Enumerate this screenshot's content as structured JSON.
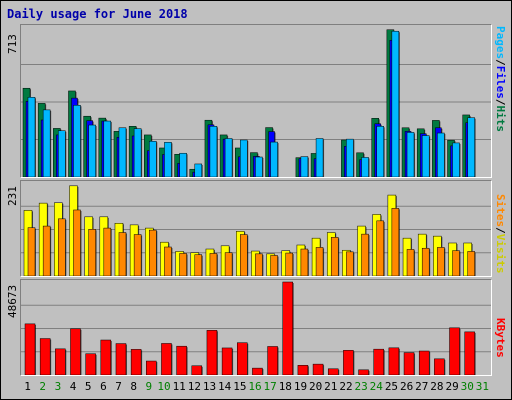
{
  "title": "Daily usage for June 2018",
  "colors": {
    "hits": "#007a40",
    "files": "#0000ff",
    "pages": "#00b8ff",
    "visits": "#ffff00",
    "sites": "#ff8800",
    "kbytes": "#ff0000",
    "weekday": "#000000",
    "weekend": "#007f00",
    "grid": "#808080"
  },
  "panels": {
    "hits": {
      "ymax_label": "713",
      "right_labels": [
        "Pages",
        "/",
        "Files",
        "/",
        "Hits"
      ]
    },
    "visits": {
      "ymax_label": "231",
      "right_labels": [
        "Sites",
        "/",
        "Visits"
      ]
    },
    "kbytes": {
      "ymax_label": "48673",
      "right_labels": [
        "KBytes"
      ]
    }
  },
  "chart_data": {
    "type": "bar",
    "title": "Daily usage for June 2018",
    "categories": [
      "1",
      "2",
      "3",
      "4",
      "5",
      "6",
      "7",
      "8",
      "9",
      "10",
      "11",
      "12",
      "13",
      "14",
      "15",
      "16",
      "17",
      "18",
      "19",
      "20",
      "21",
      "22",
      "23",
      "24",
      "25",
      "26",
      "27",
      "28",
      "29",
      "30",
      "31"
    ],
    "weekend_days": [
      "2",
      "3",
      "9",
      "10",
      "16",
      "17",
      "23",
      "24",
      "30",
      "31"
    ],
    "panels": [
      {
        "name": "hits",
        "ymax": 713,
        "series": [
          {
            "name": "Hits",
            "values": [
              422,
              350,
              231,
              409,
              289,
              280,
              217,
              241,
              200,
              138,
              108,
              37,
              270,
              200,
              138,
              116,
              235,
              0,
              92,
              112,
              0,
              176,
              115,
              279,
              700,
              234,
              229,
              269,
              175,
              295,
              0
            ]
          },
          {
            "name": "Files",
            "values": [
              360,
              271,
              200,
              375,
              268,
              266,
              189,
              195,
              125,
              107,
              65,
              23,
              248,
              180,
              96,
              98,
              216,
              0,
              87,
              87,
              0,
              146,
              82,
              253,
              650,
              217,
              206,
              234,
              148,
              258,
              0
            ]
          },
          {
            "name": "Pages",
            "values": [
              379,
              319,
              220,
              341,
              247,
              266,
              234,
              230,
              170,
              165,
              113,
              62,
              241,
              183,
              176,
              95,
              166,
              0,
              97,
              183,
              0,
              180,
              93,
              241,
              693,
              212,
              197,
              209,
              162,
              282,
              0
            ]
          }
        ]
      },
      {
        "name": "visits",
        "ymax": 231,
        "series": [
          {
            "name": "Visits",
            "values": [
              163,
              181,
              182,
              224,
              147,
              147,
              131,
              127,
              119,
              84,
              61,
              58,
              67,
              75,
              111,
              62,
              55,
              63,
              77,
              94,
              108,
              64,
              124,
              153,
              201,
              94,
              104,
              99,
              82,
              82,
              0
            ]
          },
          {
            "name": "Sites",
            "values": [
              120,
              124,
              142,
              164,
              116,
              119,
              108,
              103,
              114,
              72,
              56,
              53,
              56,
              58,
              103,
              55,
              51,
              57,
              67,
              71,
              96,
              60,
              104,
              137,
              168,
              66,
              69,
              71,
              63,
              61,
              0
            ]
          }
        ]
      },
      {
        "name": "kbytes",
        "ymax": 48673,
        "series": [
          {
            "name": "KBytes",
            "values": [
              26760,
              19080,
              13690,
              24200,
              11120,
              18310,
              16450,
              13410,
              7310,
              16510,
              15080,
              4830,
              23380,
              14160,
              16910,
              3600,
              14930,
              48670,
              5080,
              5690,
              3250,
              12910,
              2710,
              13520,
              14220,
              11720,
              12550,
              8460,
              24690,
              22570,
              0
            ]
          }
        ]
      }
    ]
  }
}
